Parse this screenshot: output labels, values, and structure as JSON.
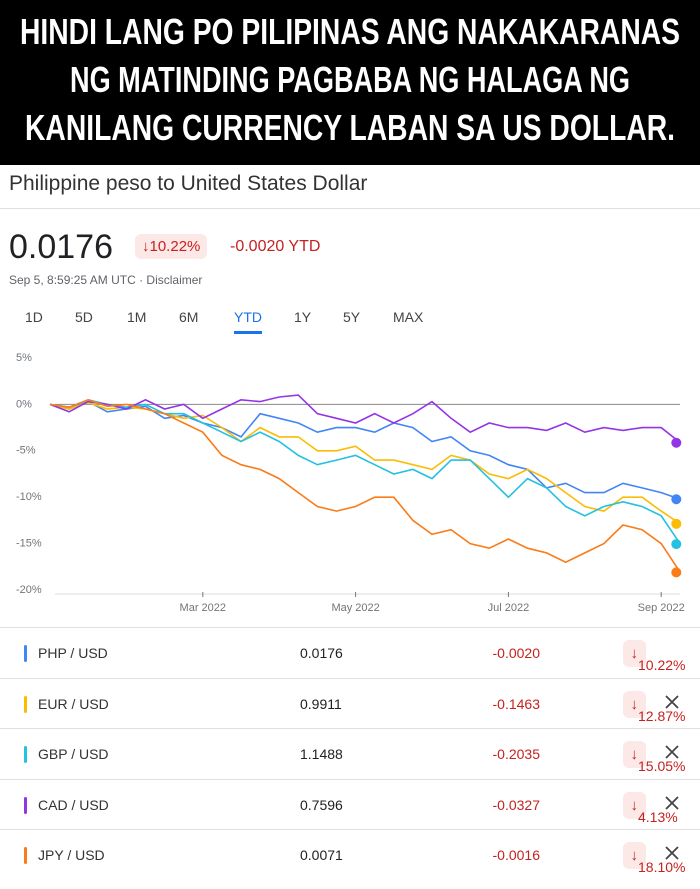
{
  "caption": {
    "lines": [
      "HINDI LANG PO PILIPINAS ANG NAKAKARANAS",
      "NG MATINDING PAGBABA NG HALAGA NG",
      "KANILANG CURRENCY LABAN SA US DOLLAR."
    ]
  },
  "widget": {
    "title": "Philippine peso to United States Dollar",
    "price": "0.0176",
    "change_pct": "10.22%",
    "change_abs": "-0.0020 YTD",
    "timestamp": "Sep 5, 8:59:25 AM UTC",
    "disclaimer": "Disclaimer",
    "tabs": [
      "1D",
      "5D",
      "1M",
      "6M",
      "YTD",
      "1Y",
      "5Y",
      "MAX"
    ],
    "active_tab_index": 4
  },
  "chart_data": {
    "type": "line",
    "categories": [
      null,
      null,
      null,
      null,
      null,
      null,
      null,
      null,
      "Mar 2022",
      null,
      null,
      null,
      null,
      null,
      null,
      null,
      "May 2022",
      null,
      null,
      null,
      null,
      null,
      null,
      null,
      "Jul 2022",
      null,
      null,
      null,
      null,
      null,
      null,
      null,
      "Sep 2022",
      null
    ],
    "ylim": [
      -20,
      5
    ],
    "yticks": [
      {
        "value": 5,
        "label": "5%"
      },
      {
        "value": 0,
        "label": "0%"
      },
      {
        "value": -5,
        "label": "-5%"
      },
      {
        "value": -10,
        "label": "-10%"
      },
      {
        "value": -15,
        "label": "-15%"
      },
      {
        "value": -20,
        "label": "-20%"
      }
    ],
    "series": [
      {
        "name": "PHP / USD",
        "color": "#4285f4",
        "values": [
          0,
          -0.5,
          0.3,
          -0.8,
          -0.5,
          -0.2,
          -1.5,
          -1.2,
          -2,
          -2.5,
          -3.5,
          -1,
          -1.5,
          -2,
          -3,
          -2.5,
          -2.5,
          -3,
          -2,
          -2.5,
          -4,
          -3.5,
          -5,
          -5.5,
          -6.5,
          -7,
          -9,
          -8.5,
          -9.5,
          -9.5,
          -8.5,
          -9,
          -9.5,
          -10.22
        ]
      },
      {
        "name": "EUR / USD",
        "color": "#fbbc04",
        "values": [
          0,
          -0.5,
          0.2,
          -0.5,
          -0.3,
          -0.5,
          -1,
          -1.5,
          -1.2,
          -2.5,
          -4,
          -2.5,
          -3.5,
          -3.5,
          -5,
          -5,
          -4.5,
          -6,
          -6,
          -6.5,
          -7,
          -5.5,
          -6,
          -7.5,
          -8,
          -7,
          -8,
          -9.5,
          -11,
          -11.5,
          -10,
          -10,
          -11.5,
          -12.87
        ]
      },
      {
        "name": "GBP / USD",
        "color": "#24c1e0",
        "values": [
          0,
          -0.3,
          0.5,
          0,
          -0.3,
          0,
          -1,
          -1,
          -2,
          -3,
          -4,
          -3,
          -4,
          -5.5,
          -6.5,
          -6,
          -5.5,
          -6.5,
          -7.5,
          -7,
          -8,
          -6,
          -6,
          -8,
          -10,
          -8,
          -9,
          -11,
          -12,
          -11,
          -10.5,
          -11,
          -12,
          -15.05
        ]
      },
      {
        "name": "CAD / USD",
        "color": "#9334e6",
        "values": [
          0,
          -0.8,
          0.3,
          0,
          -0.5,
          0.5,
          -0.5,
          0,
          -1.5,
          -0.5,
          0.5,
          0.3,
          0.8,
          1,
          -1,
          -1.5,
          -2,
          -1,
          -2,
          -1,
          0.3,
          -1.5,
          -3,
          -2,
          -2.5,
          -2.5,
          -2.8,
          -2,
          -3,
          -2.5,
          -2.8,
          -2.5,
          -2.5,
          -4.13
        ]
      },
      {
        "name": "JPY / USD",
        "color": "#fa7b17",
        "values": [
          0,
          -0.3,
          0.5,
          -0.2,
          0,
          -0.5,
          -1,
          -2,
          -3,
          -5.5,
          -6.5,
          -7,
          -8,
          -9.5,
          -11,
          -11.5,
          -11,
          -10,
          -10,
          -12.5,
          -14,
          -13.5,
          -15,
          -15.5,
          -14.5,
          -15.5,
          -16,
          -17,
          -16,
          -15,
          -13,
          -13.5,
          -15,
          -18.1
        ]
      }
    ]
  },
  "table": {
    "rows": [
      [
        "PHP / USD",
        "0.0176",
        "-0.0020",
        "10.22%"
      ],
      [
        "EUR / USD",
        "0.9911",
        "-0.1463",
        "12.87%"
      ],
      [
        "GBP / USD",
        "1.1488",
        "-0.2035",
        "15.05%"
      ],
      [
        "CAD / USD",
        "0.7596",
        "-0.0327",
        "4.13%"
      ],
      [
        "JPY / USD",
        "0.0071",
        "-0.0016",
        "18.10%"
      ]
    ],
    "removable": [
      false,
      true,
      true,
      true,
      true
    ]
  }
}
